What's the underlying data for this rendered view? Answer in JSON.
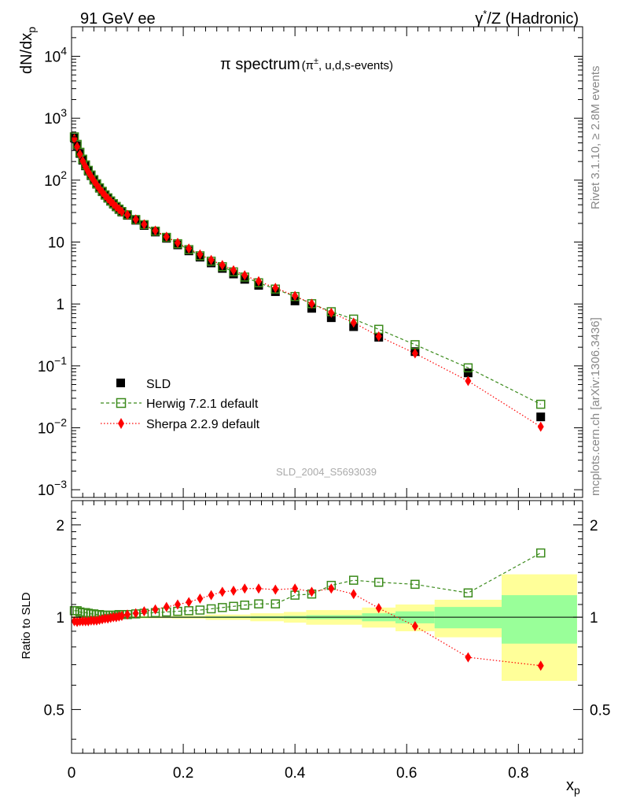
{
  "header": {
    "left": "91 GeV ee",
    "right_prefix": "γ",
    "right_sup": "*",
    "right_suffix": "/Z (Hadronic)"
  },
  "side_labels": {
    "rivet": "Rivet 3.1.10, ≥ 2.8M events",
    "mcplots": "mcplots.cern.ch [arXiv:1306.3436]"
  },
  "watermark": "SLD_2004_S5693039",
  "main_title": {
    "prefix": "π spectrum",
    "paren_open": "(π",
    "sup": "±",
    "paren_close": ", u,d,s-events)"
  },
  "legend": {
    "sld": "SLD",
    "herwig": "Herwig 7.2.1 default",
    "sherpa": "Sherpa 2.2.9 default"
  },
  "colors": {
    "sld": "#000000",
    "herwig": "#3a8a1a",
    "sherpa": "#ff0000",
    "band_inner": "#99ff99",
    "band_outer": "#ffff99"
  },
  "chart_data": [
    {
      "type": "scatter",
      "name": "spectrum",
      "title": "π spectrum (π±, u,d,s-events)",
      "xlabel": "xp",
      "ylabel": "dN/dxp",
      "yscale": "log",
      "xlim": [
        0,
        0.915
      ],
      "ylim": [
        0.00075,
        30000
      ],
      "ytick_labels": {
        "e-3": "10^-3",
        "e-2": "10^-2",
        "e-1": "10^-1",
        "e0": "1",
        "e1": "10",
        "e2": "10^2",
        "e3": "10^3",
        "e4": "10^4"
      },
      "x": [
        0.005,
        0.01,
        0.015,
        0.02,
        0.025,
        0.03,
        0.035,
        0.04,
        0.045,
        0.05,
        0.055,
        0.06,
        0.065,
        0.07,
        0.075,
        0.08,
        0.085,
        0.09,
        0.1,
        0.115,
        0.13,
        0.15,
        0.17,
        0.19,
        0.21,
        0.23,
        0.25,
        0.27,
        0.29,
        0.31,
        0.335,
        0.365,
        0.4,
        0.43,
        0.465,
        0.505,
        0.55,
        0.615,
        0.71,
        0.84
      ],
      "series": [
        {
          "name": "SLD",
          "marker": "filled-square",
          "values": [
            480,
            360,
            270,
            210,
            170,
            140,
            118,
            100,
            86,
            74,
            65,
            57,
            51,
            45.5,
            41,
            37,
            33.5,
            30.5,
            27,
            22.5,
            18.5,
            14.5,
            11.5,
            9.0,
            7.2,
            5.7,
            4.6,
            3.75,
            3.05,
            2.5,
            2.0,
            1.58,
            1.12,
            0.85,
            0.6,
            0.43,
            0.29,
            0.17,
            0.077,
            0.015
          ]
        },
        {
          "name": "Herwig 7.2.1 default",
          "marker": "open-square",
          "line": "dashed",
          "values": [
            500,
            378,
            282,
            218,
            176,
            144,
            121,
            102,
            87.5,
            75.2,
            66,
            57.9,
            51.8,
            46.2,
            41.7,
            37.6,
            34.1,
            31.1,
            27.6,
            23.1,
            19.1,
            15.0,
            11.9,
            9.4,
            7.55,
            6.0,
            4.9,
            4.0,
            3.3,
            2.72,
            2.2,
            1.74,
            1.32,
            1.01,
            0.75,
            0.57,
            0.39,
            0.22,
            0.093,
            0.024
          ]
        },
        {
          "name": "Sherpa 2.2.9 default",
          "marker": "diamond",
          "line": "dotted",
          "values": [
            465,
            348,
            262,
            204,
            165,
            136,
            115,
            97.5,
            84,
            72.5,
            64,
            56.4,
            50.6,
            45.3,
            41,
            37.1,
            33.8,
            30.9,
            27.6,
            23.2,
            19.3,
            15.3,
            12.2,
            9.7,
            7.85,
            6.3,
            5.15,
            4.25,
            3.5,
            2.9,
            2.33,
            1.82,
            1.35,
            1.01,
            0.72,
            0.5,
            0.3,
            0.159,
            0.057,
            0.0104
          ]
        }
      ]
    },
    {
      "type": "scatter",
      "name": "ratio",
      "xlabel": "xp",
      "ylabel": "Ratio to SLD",
      "xlim": [
        0,
        0.915
      ],
      "ylim": [
        0.36,
        2.4
      ],
      "x_ticks": [
        "0",
        "0.2",
        "0.4",
        "0.6",
        "0.8"
      ],
      "y_ticks": [
        "0.5",
        "1",
        "2"
      ],
      "bands": [
        {
          "x0": 0.0,
          "x1": 0.1,
          "inner": 0.004,
          "outer": 0.008
        },
        {
          "x0": 0.1,
          "x1": 0.18,
          "inner": 0.004,
          "outer": 0.009
        },
        {
          "x0": 0.18,
          "x1": 0.24,
          "inner": 0.005,
          "outer": 0.012
        },
        {
          "x0": 0.24,
          "x1": 0.32,
          "inner": 0.006,
          "outer": 0.02
        },
        {
          "x0": 0.32,
          "x1": 0.38,
          "inner": 0.008,
          "outer": 0.03
        },
        {
          "x0": 0.38,
          "x1": 0.42,
          "inner": 0.01,
          "outer": 0.04
        },
        {
          "x0": 0.42,
          "x1": 0.52,
          "inner": 0.015,
          "outer": 0.055
        },
        {
          "x0": 0.52,
          "x1": 0.58,
          "inner": 0.03,
          "outer": 0.075
        },
        {
          "x0": 0.58,
          "x1": 0.65,
          "inner": 0.045,
          "outer": 0.1
        },
        {
          "x0": 0.65,
          "x1": 0.77,
          "inner": 0.08,
          "outer": 0.14
        },
        {
          "x0": 0.77,
          "x1": 0.905,
          "inner": 0.18,
          "outer": 0.38
        }
      ],
      "series": [
        {
          "name": "Herwig 7.2.1 default",
          "values": [
            1.05,
            1.05,
            1.04,
            1.035,
            1.035,
            1.03,
            1.025,
            1.025,
            1.02,
            1.02,
            1.015,
            1.015,
            1.015,
            1.015,
            1.015,
            1.015,
            1.02,
            1.02,
            1.02,
            1.025,
            1.03,
            1.035,
            1.04,
            1.045,
            1.05,
            1.055,
            1.065,
            1.075,
            1.085,
            1.095,
            1.105,
            1.105,
            1.18,
            1.19,
            1.27,
            1.32,
            1.3,
            1.28,
            1.2,
            1.62
          ]
        },
        {
          "name": "Sherpa 2.2.9 default",
          "values": [
            0.97,
            0.965,
            0.97,
            0.97,
            0.97,
            0.97,
            0.975,
            0.975,
            0.975,
            0.98,
            0.985,
            0.99,
            0.99,
            0.995,
            1.0,
            1.0,
            1.005,
            1.01,
            1.02,
            1.03,
            1.045,
            1.06,
            1.08,
            1.1,
            1.12,
            1.15,
            1.18,
            1.21,
            1.22,
            1.24,
            1.24,
            1.23,
            1.24,
            1.21,
            1.24,
            1.19,
            1.07,
            0.935,
            0.74,
            0.695
          ]
        }
      ]
    }
  ]
}
